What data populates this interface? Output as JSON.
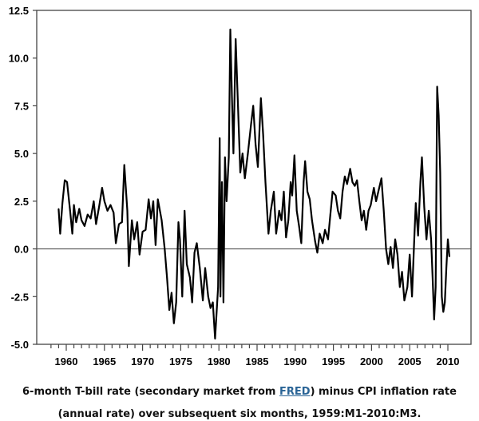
{
  "chart_data": {
    "type": "line",
    "title": "",
    "xlabel": "",
    "ylabel": "",
    "xlim": [
      1958.0,
      2013.0
    ],
    "ylim": [
      -5.0,
      12.5
    ],
    "x_ticks_major": [
      1960,
      1965,
      1970,
      1975,
      1980,
      1985,
      1990,
      1995,
      2000,
      2005,
      2010
    ],
    "x_tick_labels": [
      "1960",
      "1965",
      "1970",
      "1975",
      "1980",
      "1985",
      "1990",
      "1995",
      "2000",
      "2005",
      "2010"
    ],
    "y_ticks": [
      -5.0,
      -2.5,
      0.0,
      2.5,
      5.0,
      7.5,
      10.0,
      12.5
    ],
    "y_tick_labels": [
      "-5.0",
      "-2.5",
      "0.0",
      "2.5",
      "5.0",
      "7.5",
      "10.0",
      "12.5"
    ],
    "zero_line": true,
    "grid": false,
    "legend": "none",
    "series": [
      {
        "name": "6-month T-bill rate minus subsequent 6-month CPI inflation",
        "color": "#000000",
        "x": [
          1959.0,
          1959.2,
          1959.5,
          1959.8,
          1960.1,
          1960.5,
          1960.8,
          1961.0,
          1961.3,
          1961.7,
          1962.0,
          1962.4,
          1962.8,
          1963.2,
          1963.6,
          1963.9,
          1964.3,
          1964.7,
          1965.0,
          1965.4,
          1965.8,
          1966.2,
          1966.5,
          1966.9,
          1967.3,
          1967.6,
          1967.8,
          1968.0,
          1968.2,
          1968.6,
          1968.9,
          1969.3,
          1969.6,
          1970.0,
          1970.4,
          1970.8,
          1971.1,
          1971.4,
          1971.7,
          1972.0,
          1972.5,
          1972.9,
          1973.2,
          1973.5,
          1973.8,
          1974.1,
          1974.4,
          1974.7,
          1974.9,
          1975.2,
          1975.5,
          1975.8,
          1976.2,
          1976.5,
          1976.8,
          1977.1,
          1977.5,
          1977.9,
          1978.2,
          1978.6,
          1978.9,
          1979.2,
          1979.5,
          1979.9,
          1980.1,
          1980.2,
          1980.4,
          1980.6,
          1980.8,
          1981.0,
          1981.3,
          1981.5,
          1981.7,
          1981.9,
          1982.2,
          1982.5,
          1982.8,
          1983.1,
          1983.4,
          1983.8,
          1984.2,
          1984.5,
          1984.8,
          1985.1,
          1985.5,
          1985.8,
          1986.1,
          1986.5,
          1986.8,
          1987.2,
          1987.5,
          1987.9,
          1988.2,
          1988.5,
          1988.8,
          1989.1,
          1989.4,
          1989.6,
          1989.9,
          1990.2,
          1990.5,
          1990.8,
          1991.1,
          1991.3,
          1991.6,
          1991.9,
          1992.2,
          1992.6,
          1992.9,
          1993.2,
          1993.6,
          1993.9,
          1994.3,
          1994.6,
          1994.9,
          1995.3,
          1995.6,
          1995.9,
          1996.2,
          1996.5,
          1996.8,
          1997.2,
          1997.5,
          1997.8,
          1998.1,
          1998.4,
          1998.7,
          1999.0,
          1999.3,
          1999.6,
          1999.9,
          2000.3,
          2000.6,
          2001.0,
          2001.3,
          2001.6,
          2001.9,
          2002.2,
          2002.5,
          2002.8,
          2003.1,
          2003.4,
          2003.7,
          2004.0,
          2004.3,
          2004.7,
          2005.0,
          2005.3,
          2005.6,
          2005.8,
          2006.1,
          2006.4,
          2006.6,
          2006.9,
          2007.2,
          2007.5,
          2007.8,
          2008.0,
          2008.2,
          2008.4,
          2008.6,
          2008.8,
          2009.0,
          2009.2,
          2009.4,
          2009.6,
          2009.8,
          2010.0,
          2010.2
        ],
        "values": [
          2.1,
          0.8,
          2.4,
          3.6,
          3.5,
          2.0,
          0.8,
          2.3,
          1.4,
          2.1,
          1.5,
          1.2,
          1.8,
          1.6,
          2.5,
          1.3,
          2.2,
          3.2,
          2.5,
          2.0,
          2.3,
          1.9,
          0.3,
          1.3,
          1.4,
          4.4,
          3.2,
          2.0,
          -0.9,
          1.5,
          0.5,
          1.4,
          -0.3,
          0.9,
          1.0,
          2.6,
          1.6,
          2.5,
          0.2,
          2.6,
          1.5,
          0.0,
          -1.5,
          -3.2,
          -2.3,
          -3.9,
          -2.8,
          1.4,
          0.5,
          -2.5,
          2.0,
          -0.8,
          -1.5,
          -2.8,
          -0.2,
          0.3,
          -1.0,
          -2.7,
          -1.0,
          -2.5,
          -3.1,
          -2.8,
          -4.7,
          -2.0,
          5.8,
          -2.5,
          3.5,
          -2.8,
          4.8,
          2.5,
          4.8,
          11.5,
          8.0,
          5.0,
          11.0,
          7.5,
          4.0,
          5.0,
          3.7,
          5.0,
          6.5,
          7.5,
          5.5,
          4.3,
          7.9,
          6.0,
          3.5,
          0.8,
          2.0,
          3.0,
          0.8,
          2.0,
          1.5,
          3.0,
          0.6,
          1.5,
          3.5,
          2.8,
          4.9,
          2.0,
          1.2,
          0.3,
          3.5,
          4.6,
          3.0,
          2.6,
          1.5,
          0.4,
          -0.2,
          0.8,
          0.3,
          1.0,
          0.5,
          1.8,
          3.0,
          2.8,
          2.0,
          1.6,
          3.0,
          3.8,
          3.4,
          4.2,
          3.5,
          3.3,
          3.6,
          2.5,
          1.5,
          2.0,
          1.0,
          2.0,
          2.3,
          3.2,
          2.5,
          3.2,
          3.7,
          2.0,
          0.0,
          -0.8,
          0.1,
          -1.0,
          0.5,
          -0.3,
          -2.0,
          -1.2,
          -2.7,
          -2.0,
          -0.3,
          -2.5,
          0.5,
          2.4,
          0.7,
          3.5,
          4.8,
          2.2,
          0.5,
          2.0,
          0.5,
          -1.5,
          -3.7,
          -2.0,
          8.5,
          7.0,
          4.0,
          -2.5,
          -3.3,
          -2.8,
          -1.0,
          0.5,
          -0.4
        ]
      }
    ]
  },
  "caption": {
    "line1_before": "6-month T-bill rate (secondary market from ",
    "link_text": "FRED",
    "line1_after": ") minus CPI inflation rate",
    "line2": "(annual rate) over subsequent six months, 1959:M1-2010:M3.",
    "link_color": "#2a6496"
  }
}
